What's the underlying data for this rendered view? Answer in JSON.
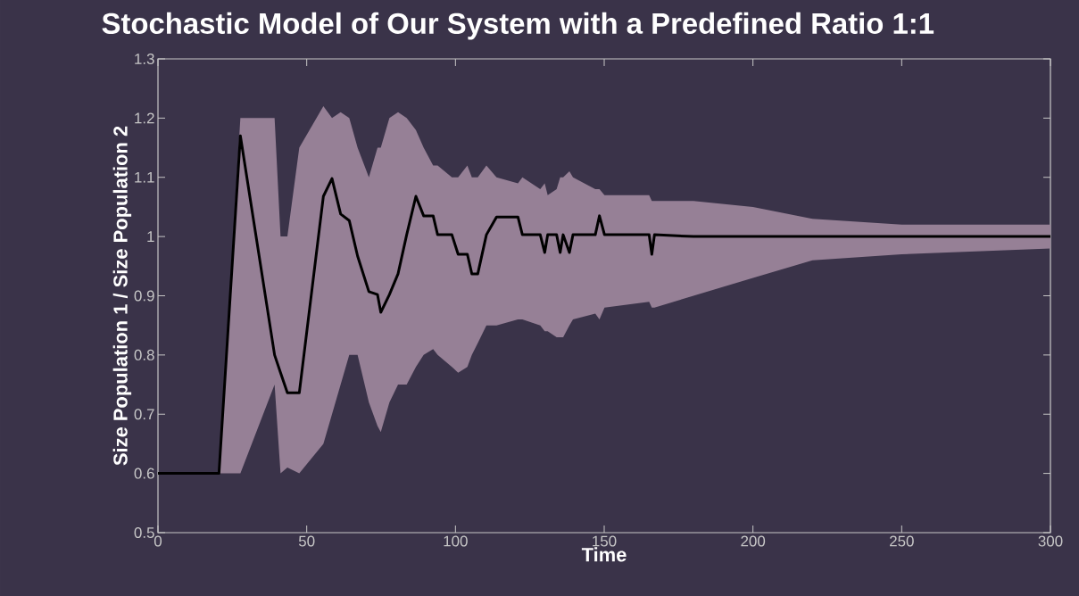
{
  "chart_data": {
    "type": "line",
    "title": "Stochastic Model of Our System with a Predefined Ratio 1:1",
    "xlabel": "Time",
    "ylabel": "Size Population 1 / Size Population 2",
    "xlim": [
      0,
      300
    ],
    "ylim": [
      0.5,
      1.3
    ],
    "xticks": [
      0,
      50,
      100,
      150,
      200,
      250,
      300
    ],
    "yticks": [
      0.5,
      0.6,
      0.7,
      0.8,
      0.9,
      1,
      1.1,
      1.2,
      1.3
    ],
    "grid": false,
    "marker": "none",
    "line_style": "solid",
    "series": [
      {
        "color": "#000000",
        "x": [
          0,
          20.5,
          27.7,
          39.2,
          41.2,
          43.5,
          47.5,
          55.6,
          58.5,
          61.4,
          64.3,
          67.1,
          70.9,
          73.8,
          74.9,
          77.8,
          80.7,
          83.6,
          86.7,
          89.3,
          92.5,
          94,
          98.8,
          100.9,
          104,
          105.5,
          107.5,
          110.4,
          113.8,
          121,
          122.5,
          128.5,
          130,
          131,
          134,
          135.2,
          136.2,
          138.3,
          139.5,
          147,
          148.4,
          150.1,
          165.1,
          166,
          166.9,
          180,
          200,
          220,
          250,
          300
        ],
        "values": [
          0.6,
          0.6,
          1.17,
          0.8,
          0.77,
          0.736,
          0.736,
          1.068,
          1.098,
          1.038,
          1.027,
          0.967,
          0.907,
          0.902,
          0.872,
          0.902,
          0.937,
          1.003,
          1.068,
          1.035,
          1.035,
          1.003,
          1.003,
          0.97,
          0.97,
          0.937,
          0.937,
          1.003,
          1.033,
          1.033,
          1.003,
          1.003,
          0.973,
          1.003,
          1.003,
          0.973,
          1.003,
          0.973,
          1.003,
          1.003,
          1.035,
          1.003,
          1.003,
          0.97,
          1.003,
          1,
          1,
          1,
          1,
          1
        ],
        "lower": [
          0.6,
          0.6,
          0.6,
          0.75,
          0.6,
          0.61,
          0.6,
          0.65,
          0.7,
          0.75,
          0.8,
          0.8,
          0.72,
          0.68,
          0.67,
          0.72,
          0.75,
          0.75,
          0.78,
          0.8,
          0.81,
          0.8,
          0.78,
          0.77,
          0.78,
          0.8,
          0.82,
          0.85,
          0.85,
          0.86,
          0.86,
          0.85,
          0.84,
          0.84,
          0.83,
          0.83,
          0.83,
          0.85,
          0.86,
          0.87,
          0.86,
          0.88,
          0.89,
          0.88,
          0.88,
          0.9,
          0.93,
          0.96,
          0.97,
          0.98
        ],
        "upper": [
          0.6,
          0.6,
          1.2,
          1.2,
          1.0,
          1.0,
          1.15,
          1.22,
          1.2,
          1.21,
          1.2,
          1.15,
          1.1,
          1.15,
          1.15,
          1.2,
          1.21,
          1.2,
          1.18,
          1.15,
          1.12,
          1.12,
          1.1,
          1.1,
          1.12,
          1.1,
          1.1,
          1.12,
          1.1,
          1.09,
          1.1,
          1.08,
          1.09,
          1.07,
          1.08,
          1.1,
          1.1,
          1.11,
          1.1,
          1.08,
          1.08,
          1.07,
          1.07,
          1.06,
          1.06,
          1.06,
          1.05,
          1.03,
          1.02,
          1.02
        ]
      }
    ]
  }
}
